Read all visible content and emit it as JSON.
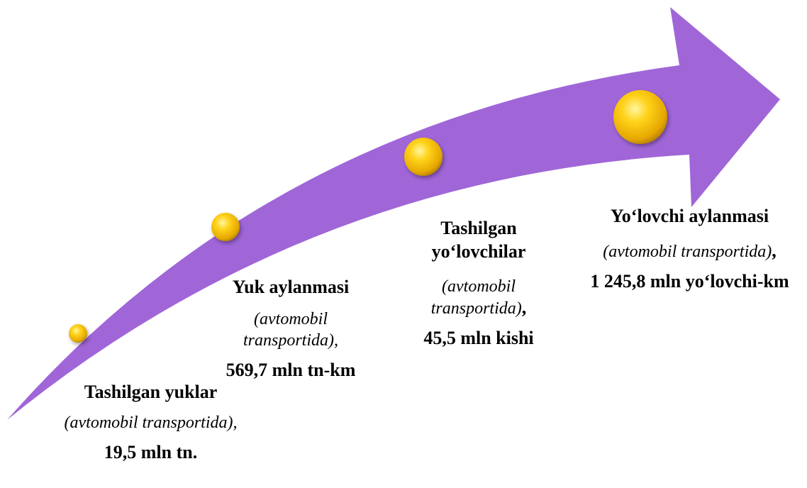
{
  "items": [
    {
      "title": "Tashilgan yuklar",
      "note": "(avtomobil transportida),",
      "value": "19,5 mln tn."
    },
    {
      "title": "Yuk aylanmasi",
      "note": "(avtomobil transportida),",
      "value": "569,7 mln tn-km"
    },
    {
      "title": "Tashilgan yo‘lovchilar",
      "note": "(avtomobil transportida)",
      "suffix": ",",
      "value": "45,5 mln kishi"
    },
    {
      "title": "Yo‘lovchi aylanmasi",
      "note": "(avtomobil transportida)",
      "suffix": ",",
      "value": "1 245,8 mln yo‘lovchi-km"
    }
  ]
}
